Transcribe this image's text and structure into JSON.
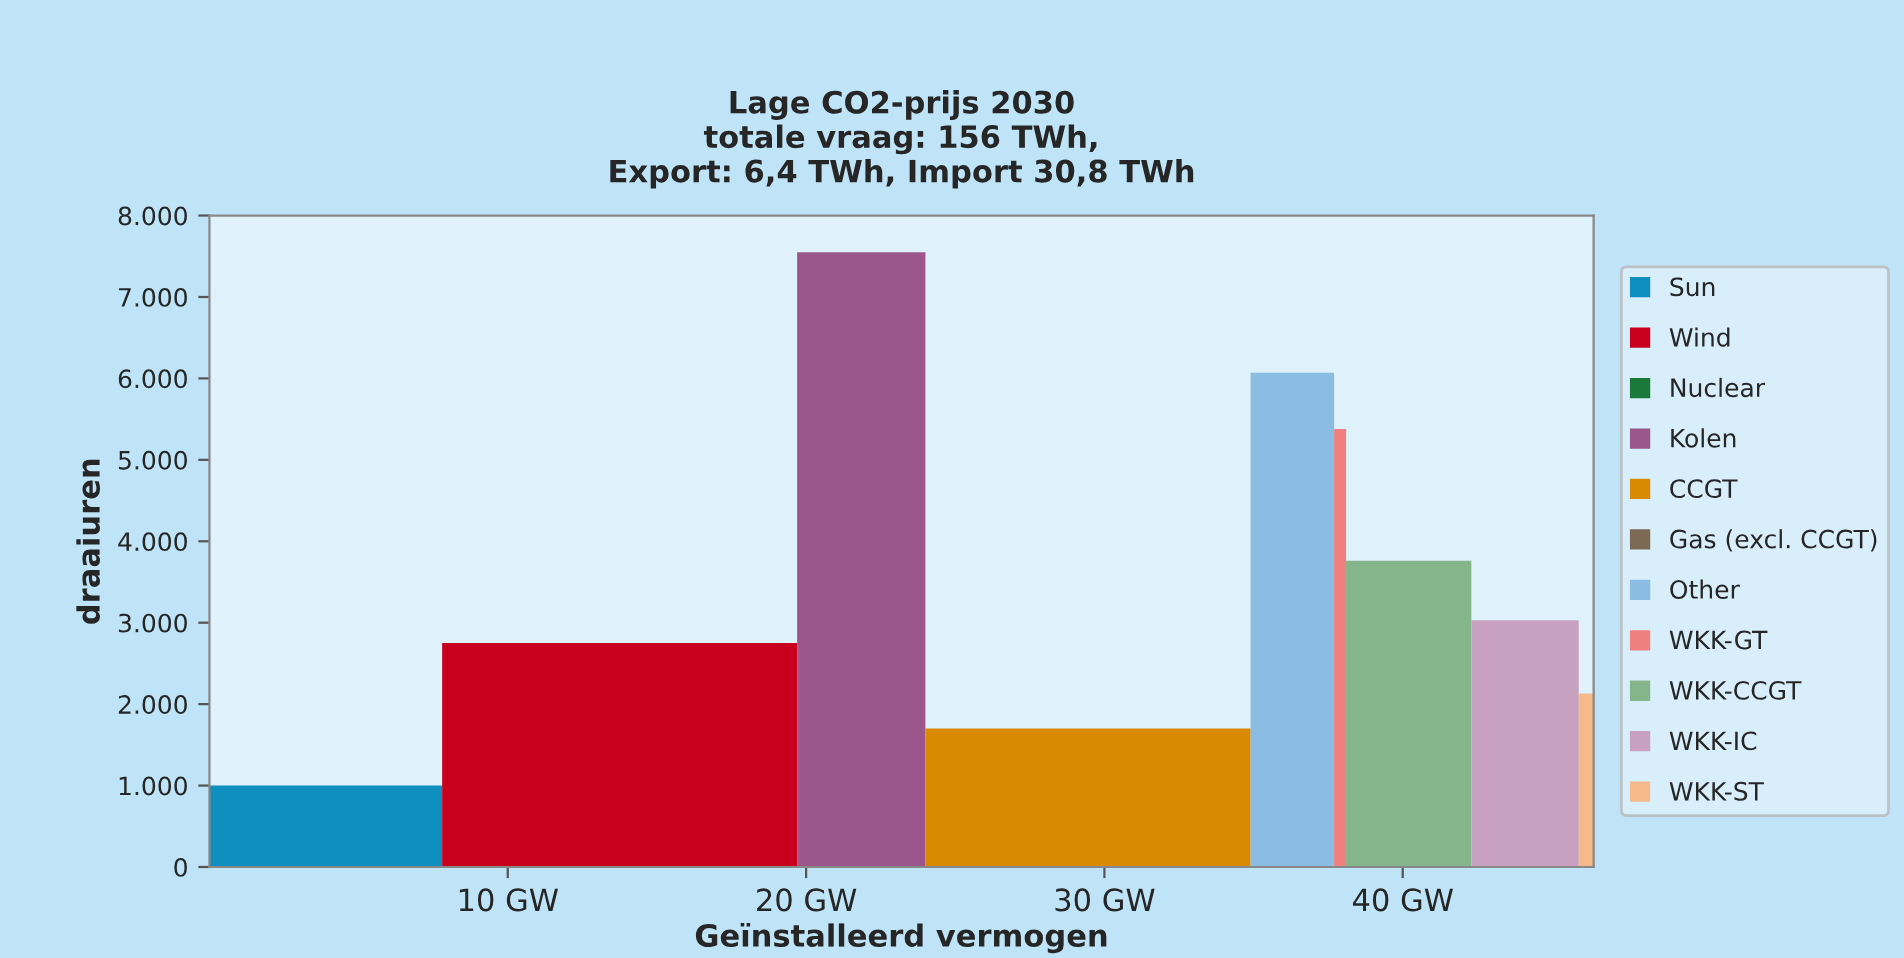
{
  "chart_data": {
    "type": "area",
    "title": "Lage CO2-prijs 2030\ntotale vraag: 156 TWh,\nExport: 6,4 TWh, Import 30,8 TWh",
    "xlabel": "Geïnstalleerd vermogen",
    "ylabel": "draaiuren",
    "xlim": [
      0,
      46.4
    ],
    "xticks": [
      {
        "value": 10,
        "label": "10 GW"
      },
      {
        "value": 20,
        "label": "20 GW"
      },
      {
        "value": 30,
        "label": "30 GW"
      },
      {
        "value": 40,
        "label": "40 GW"
      }
    ],
    "ylim": [
      0,
      8000
    ],
    "yticks": [
      0,
      {
        "value": 1000,
        "label": "1.000"
      },
      {
        "value": 2000,
        "label": "2.000"
      },
      {
        "value": 3000,
        "label": "3.000"
      },
      {
        "value": 4000,
        "label": "4.000"
      },
      {
        "value": 5000,
        "label": "5.000"
      },
      {
        "value": 6000,
        "label": "6.000"
      },
      {
        "value": 7000,
        "label": "7.000"
      },
      {
        "value": 8000,
        "label": "8.000"
      }
    ],
    "legend": "right",
    "grid": false,
    "series": [
      {
        "name": "Sun",
        "color": "#0e8fc0",
        "x": [
          0,
          7.8
        ],
        "values": [
          1000,
          1000
        ]
      },
      {
        "name": "Wind",
        "color": "#c8001e",
        "x": [
          7.8,
          19.7
        ],
        "values": [
          2750,
          2750
        ]
      },
      {
        "name": "Nuclear",
        "color": "#1a7a3a"
      },
      {
        "name": "Kolen",
        "color": "#9b578b",
        "x": [
          19.7,
          24.0
        ],
        "values": [
          7550,
          7550
        ]
      },
      {
        "name": "CCGT",
        "color": "#d98a00",
        "x": [
          24.0,
          34.9
        ],
        "values": [
          1700,
          1700
        ]
      },
      {
        "name": "Gas (excl. CCGT)",
        "color": "#7d6a55"
      },
      {
        "name": "Other",
        "color": "#8bbde3",
        "x": [
          34.9,
          37.7
        ],
        "values": [
          6070,
          6070
        ]
      },
      {
        "name": "WKK-GT",
        "color": "#f08080",
        "x": [
          37.7,
          38.1
        ],
        "values": [
          5380,
          5380
        ]
      },
      {
        "name": "WKK-CCGT",
        "color": "#85b58a",
        "x": [
          38.1,
          42.3
        ],
        "values": [
          3760,
          3760
        ]
      },
      {
        "name": "WKK-IC",
        "color": "#c8a0c0",
        "x": [
          42.3,
          45.9
        ],
        "values": [
          3030,
          3030
        ]
      },
      {
        "name": "WKK-ST",
        "color": "#f5b98a",
        "x": [
          45.9,
          46.4
        ],
        "values": [
          2130,
          2130
        ]
      }
    ]
  }
}
